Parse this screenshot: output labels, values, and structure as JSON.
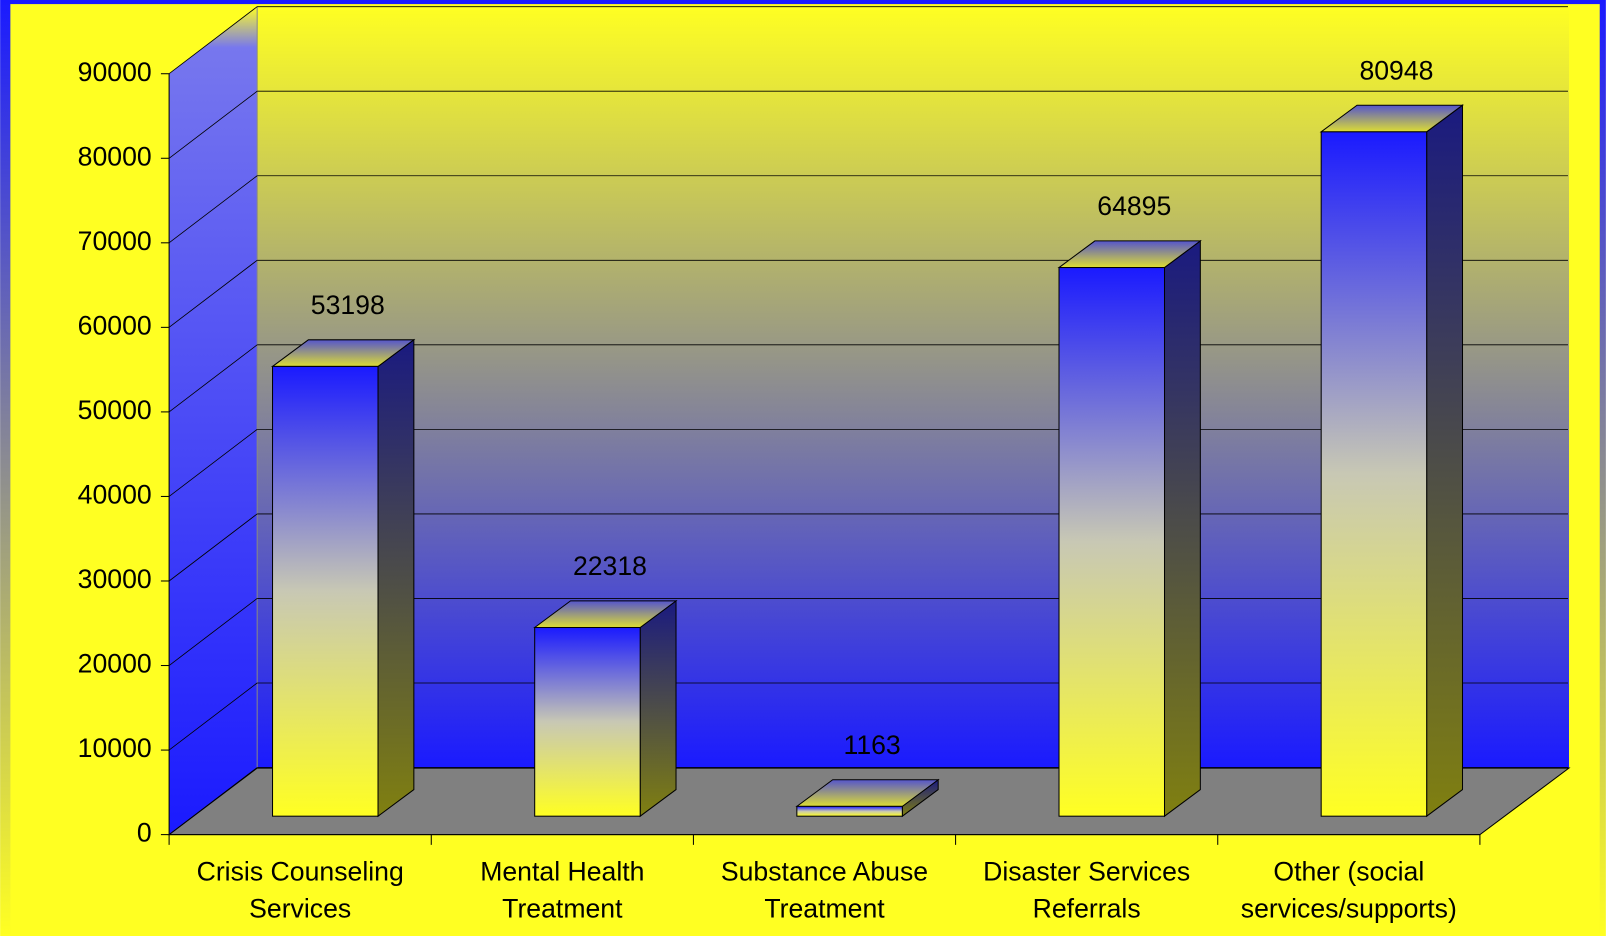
{
  "chart_data": {
    "type": "bar3d",
    "categories": [
      "Crisis Counseling Services",
      "Mental Health Treatment",
      "Substance Abuse Treatment",
      "Disaster Services Referrals",
      "Other (social services/supports)"
    ],
    "values": [
      53198,
      22318,
      1163,
      64895,
      80948
    ],
    "ylim": [
      0,
      90000
    ],
    "yticks": [
      0,
      10000,
      20000,
      30000,
      40000,
      50000,
      60000,
      70000,
      80000,
      90000
    ],
    "grid": true
  }
}
